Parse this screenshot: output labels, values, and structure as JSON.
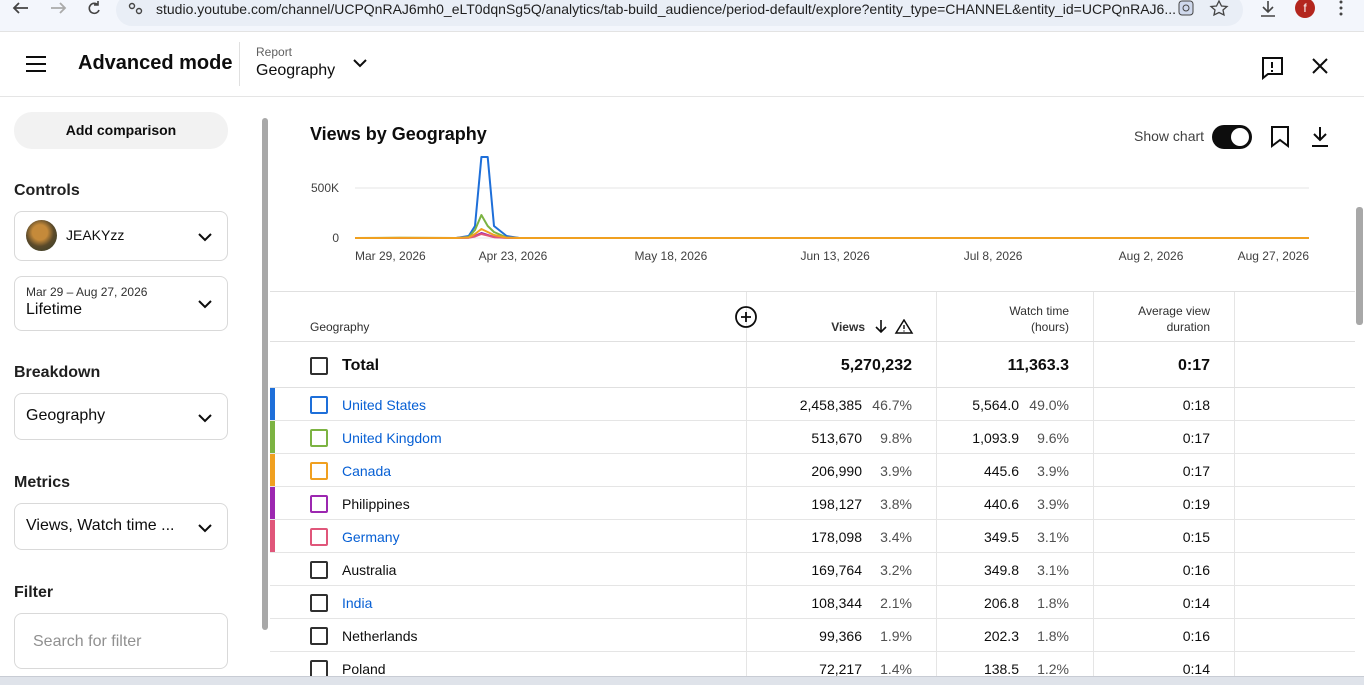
{
  "browser": {
    "url": "studio.youtube.com/channel/UCPQnRAJ6mh0_eLT0dqnSg5Q/analytics/tab-build_audience/period-default/explore?entity_type=CHANNEL&entity_id=UCPQnRAJ6...",
    "profile": "f"
  },
  "header": {
    "title": "Advanced mode",
    "report_label": "Report",
    "report": "Geography"
  },
  "sidebar": {
    "add_comparison": "Add comparison",
    "controls_heading": "Controls",
    "channel": "JEAKYzz",
    "date_range": "Mar 29 – Aug 27, 2026",
    "period": "Lifetime",
    "breakdown_heading": "Breakdown",
    "breakdown": "Geography",
    "metrics_heading": "Metrics",
    "metrics": "Views, Watch time ...",
    "filter_heading": "Filter",
    "filter_placeholder": "Search for filter"
  },
  "chart_controls": {
    "show_chart": "Show chart"
  },
  "chart_data": {
    "type": "line",
    "title": "Views by Geography",
    "x": [
      "Mar 29, 2026",
      "Apr 5, 2026",
      "Apr 14, 2026",
      "Apr 16, 2026",
      "Apr 17, 2026",
      "Apr 18, 2026",
      "Apr 19, 2026",
      "Apr 20, 2026",
      "Apr 22, 2026",
      "Apr 24, 2026",
      "Aug 27, 2026"
    ],
    "series": [
      {
        "color": "#1e6fd9",
        "values": [
          0,
          0,
          0,
          20000,
          120000,
          810000,
          810000,
          120000,
          20000,
          0,
          0
        ]
      },
      {
        "color": "#7cb342",
        "values": [
          0,
          3000,
          0,
          10000,
          80000,
          230000,
          120000,
          60000,
          5000,
          0,
          0
        ]
      },
      {
        "color": "#9c27b0",
        "values": [
          0,
          0,
          0,
          3000,
          20000,
          50000,
          30000,
          10000,
          2000,
          0,
          0
        ]
      },
      {
        "color": "#e0567a",
        "values": [
          0,
          0,
          0,
          2000,
          15000,
          40000,
          25000,
          8000,
          1000,
          0,
          0
        ]
      },
      {
        "color": "#f0a020",
        "values": [
          0,
          1000,
          0,
          5000,
          40000,
          90000,
          60000,
          30000,
          3000,
          0,
          0
        ]
      }
    ],
    "xlim": [
      "Mar 29, 2026",
      "Aug 27, 2026"
    ],
    "xticks": [
      "Mar 29, 2026",
      "Apr 23, 2026",
      "May 18, 2026",
      "Jun 13, 2026",
      "Jul 8, 2026",
      "Aug 2, 2026",
      "Aug 27, 2026"
    ],
    "ylim": [
      0,
      810000
    ],
    "yticks": [
      0,
      {
        "value": 500000,
        "label": "500K"
      }
    ],
    "grid": true
  },
  "table": {
    "columns": {
      "geography": "Geography",
      "views": "Views",
      "watch_time": [
        "Watch time",
        "(hours)"
      ],
      "avg_duration": [
        "Average view",
        "duration"
      ]
    },
    "total": {
      "label": "Total",
      "views": "5,270,232",
      "watch_time": "11,363.3",
      "avg_duration": "0:17"
    },
    "rows": [
      {
        "geography": "United States",
        "views": "2,458,385",
        "views_share": "46.7%",
        "watch_time": "5,564.0",
        "watch_share": "49.0%",
        "avg_duration": "0:18",
        "color": "#1e6fd9",
        "link": true
      },
      {
        "geography": "United Kingdom",
        "views": "513,670",
        "views_share": "9.8%",
        "watch_time": "1,093.9",
        "watch_share": "9.6%",
        "avg_duration": "0:17",
        "color": "#7cb342",
        "link": true
      },
      {
        "geography": "Canada",
        "views": "206,990",
        "views_share": "3.9%",
        "watch_time": "445.6",
        "watch_share": "3.9%",
        "avg_duration": "0:17",
        "color": "#f0a020",
        "link": true
      },
      {
        "geography": "Philippines",
        "views": "198,127",
        "views_share": "3.8%",
        "watch_time": "440.6",
        "watch_share": "3.9%",
        "avg_duration": "0:19",
        "color": "#9c27b0",
        "link": false
      },
      {
        "geography": "Germany",
        "views": "178,098",
        "views_share": "3.4%",
        "watch_time": "349.5",
        "watch_share": "3.1%",
        "avg_duration": "0:15",
        "color": "#e0567a",
        "link": true
      },
      {
        "geography": "Australia",
        "views": "169,764",
        "views_share": "3.2%",
        "watch_time": "349.8",
        "watch_share": "3.1%",
        "avg_duration": "0:16",
        "link": false
      },
      {
        "geography": "India",
        "views": "108,344",
        "views_share": "2.1%",
        "watch_time": "206.8",
        "watch_share": "1.8%",
        "avg_duration": "0:14",
        "link": true
      },
      {
        "geography": "Netherlands",
        "views": "99,366",
        "views_share": "1.9%",
        "watch_time": "202.3",
        "watch_share": "1.8%",
        "avg_duration": "0:16",
        "link": false
      },
      {
        "geography": "Poland",
        "views": "72,217",
        "views_share": "1.4%",
        "watch_time": "138.5",
        "watch_share": "1.2%",
        "avg_duration": "0:14",
        "link": false
      }
    ]
  }
}
